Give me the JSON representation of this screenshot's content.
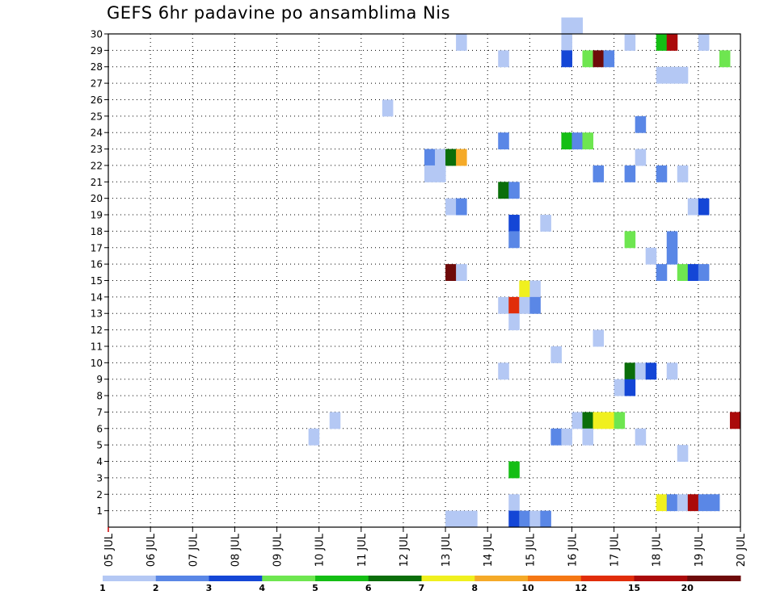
{
  "chart_data": {
    "type": "heatmap",
    "title": "GEFS 6hr padavine po ansamblima Nis",
    "x_tick_labels": [
      "05 JUL",
      "06 JUL",
      "07 JUL",
      "08 JUL",
      "09 JUL",
      "10 JUL",
      "11 JUL",
      "12 JUL",
      "13 JUL",
      "14 JUL",
      "15 JUL",
      "16 JUL",
      "17 JUL",
      "18 JUL",
      "19 JUL",
      "20 JUL"
    ],
    "x_range_days": [
      0,
      15
    ],
    "y_tick_labels": [
      "1",
      "2",
      "3",
      "4",
      "5",
      "6",
      "7",
      "8",
      "9",
      "10",
      "11",
      "12",
      "13",
      "14",
      "15",
      "16",
      "17",
      "18",
      "19",
      "20",
      "21",
      "22",
      "23",
      "24",
      "25",
      "26",
      "27",
      "28",
      "29",
      "30"
    ],
    "y_range": [
      0,
      30
    ],
    "grid": "dotted",
    "colorbar": {
      "labels": [
        "1",
        "2",
        "3",
        "4",
        "5",
        "6",
        "7",
        "8",
        "10",
        "12",
        "15",
        "20"
      ],
      "colors": [
        "#b4c8f4",
        "#5a87e6",
        "#1446d6",
        "#6ee650",
        "#14be14",
        "#0a6e0a",
        "#f0f01e",
        "#f5aa28",
        "#f57814",
        "#e12d0a",
        "#aa0a0a",
        "#6e0a0a"
      ]
    },
    "cells": [
      {
        "m": 30,
        "s": [
          [
            43,
            0
          ],
          [
            44,
            0
          ]
        ]
      },
      {
        "m": 29,
        "s": [
          [
            33,
            0
          ],
          [
            43,
            0
          ],
          [
            49,
            0
          ],
          [
            52,
            4
          ],
          [
            53,
            10
          ],
          [
            56,
            0
          ]
        ]
      },
      {
        "m": 28,
        "s": [
          [
            37,
            0
          ],
          [
            43,
            2
          ],
          [
            45,
            3
          ],
          [
            46,
            11
          ],
          [
            47,
            1
          ],
          [
            58,
            3
          ]
        ]
      },
      {
        "m": 27,
        "s": [
          [
            52,
            0
          ],
          [
            53,
            0
          ],
          [
            54,
            0
          ]
        ]
      },
      {
        "m": 25,
        "s": [
          [
            26,
            0
          ]
        ]
      },
      {
        "m": 24,
        "s": [
          [
            50,
            1
          ]
        ]
      },
      {
        "m": 23,
        "s": [
          [
            37,
            1
          ],
          [
            43,
            4
          ],
          [
            44,
            1
          ],
          [
            45,
            3
          ]
        ]
      },
      {
        "m": 22,
        "s": [
          [
            30,
            1
          ],
          [
            31,
            0
          ],
          [
            32,
            5
          ],
          [
            33,
            7
          ],
          [
            50,
            0
          ]
        ]
      },
      {
        "m": 21,
        "s": [
          [
            30,
            0
          ],
          [
            31,
            0
          ],
          [
            46,
            1
          ],
          [
            49,
            1
          ],
          [
            52,
            1
          ],
          [
            54,
            0
          ]
        ]
      },
      {
        "m": 20,
        "s": [
          [
            37,
            5
          ],
          [
            38,
            1
          ]
        ]
      },
      {
        "m": 19,
        "s": [
          [
            32,
            0
          ],
          [
            33,
            1
          ],
          [
            55,
            0
          ],
          [
            56,
            2
          ]
        ]
      },
      {
        "m": 18,
        "s": [
          [
            38,
            2
          ],
          [
            41,
            0
          ]
        ]
      },
      {
        "m": 17,
        "s": [
          [
            38,
            1
          ],
          [
            49,
            3
          ],
          [
            53,
            1
          ]
        ]
      },
      {
        "m": 16,
        "s": [
          [
            51,
            0
          ],
          [
            53,
            1
          ]
        ]
      },
      {
        "m": 15,
        "s": [
          [
            32,
            11
          ],
          [
            33,
            0
          ],
          [
            52,
            1
          ],
          [
            54,
            3
          ],
          [
            55,
            2
          ],
          [
            56,
            1
          ]
        ]
      },
      {
        "m": 14,
        "s": [
          [
            39,
            6
          ],
          [
            40,
            0
          ]
        ]
      },
      {
        "m": 13,
        "s": [
          [
            37,
            0
          ],
          [
            38,
            9
          ],
          [
            39,
            0
          ],
          [
            40,
            1
          ]
        ]
      },
      {
        "m": 12,
        "s": [
          [
            38,
            0
          ]
        ]
      },
      {
        "m": 11,
        "s": [
          [
            46,
            0
          ]
        ]
      },
      {
        "m": 10,
        "s": [
          [
            42,
            0
          ]
        ]
      },
      {
        "m": 9,
        "s": [
          [
            37,
            0
          ],
          [
            49,
            5
          ],
          [
            50,
            0
          ],
          [
            51,
            2
          ],
          [
            53,
            0
          ]
        ]
      },
      {
        "m": 8,
        "s": [
          [
            48,
            0
          ],
          [
            49,
            2
          ]
        ]
      },
      {
        "m": 6,
        "s": [
          [
            21,
            0
          ],
          [
            44,
            0
          ],
          [
            45,
            5
          ],
          [
            46,
            6
          ],
          [
            47,
            6
          ],
          [
            48,
            3
          ],
          [
            59,
            10
          ]
        ]
      },
      {
        "m": 5,
        "s": [
          [
            19,
            0
          ],
          [
            42,
            1
          ],
          [
            43,
            0
          ],
          [
            45,
            0
          ],
          [
            50,
            0
          ]
        ]
      },
      {
        "m": 4,
        "s": [
          [
            54,
            0
          ]
        ]
      },
      {
        "m": 3,
        "s": [
          [
            38,
            4
          ]
        ]
      },
      {
        "m": 1,
        "s": [
          [
            38,
            0
          ],
          [
            52,
            6
          ],
          [
            53,
            1
          ],
          [
            54,
            0
          ],
          [
            55,
            10
          ],
          [
            56,
            1
          ],
          [
            57,
            1
          ]
        ]
      },
      {
        "m": 0,
        "s": [
          [
            32,
            0
          ],
          [
            33,
            0
          ],
          [
            34,
            0
          ],
          [
            38,
            2
          ],
          [
            39,
            1
          ],
          [
            40,
            0
          ],
          [
            41,
            1
          ]
        ]
      }
    ]
  }
}
